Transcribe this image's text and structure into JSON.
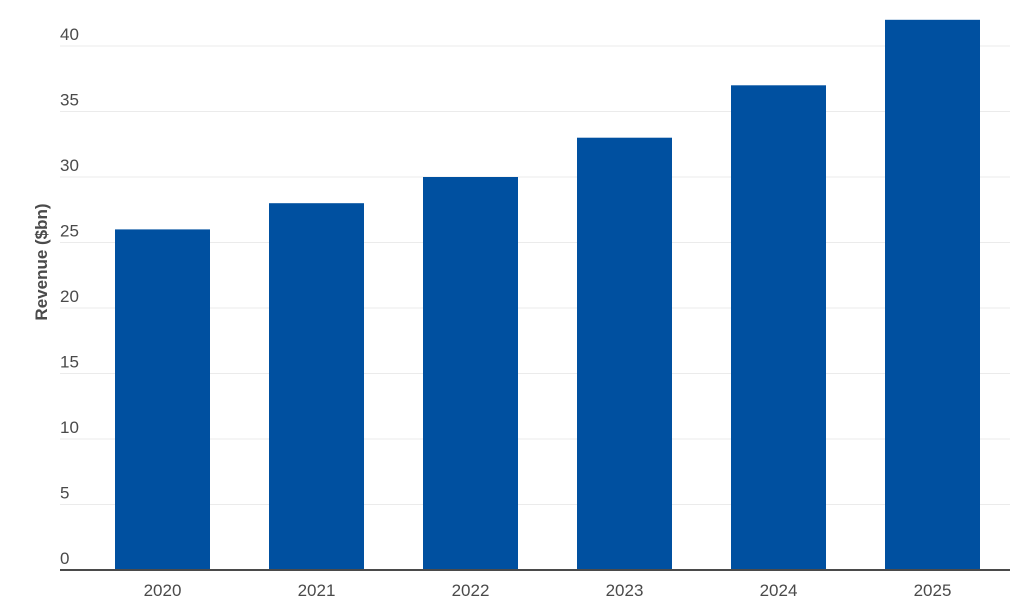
{
  "chart_data": {
    "type": "bar",
    "title": "",
    "xlabel": "",
    "ylabel": "Revenue ($bn)",
    "categories": [
      "2020",
      "2021",
      "2022",
      "2023",
      "2024",
      "2025"
    ],
    "values": [
      26,
      28,
      30,
      33,
      37,
      42
    ],
    "ylim": [
      0,
      40
    ],
    "yticks": [
      "0",
      "5",
      "10",
      "15",
      "20",
      "25",
      "30",
      "35",
      "40"
    ],
    "grid": true,
    "legend": "none",
    "colors": {
      "bar": "#0050a0",
      "grid": "#ebebeb",
      "axis": "#4a4a4a",
      "text": "#4a4a4a"
    }
  }
}
